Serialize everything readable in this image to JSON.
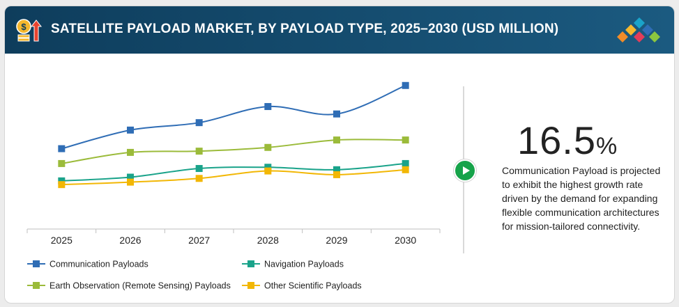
{
  "header": {
    "title": "SATELLITE PAYLOAD MARKET, BY PAYLOAD TYPE, 2025–2030 (USD MILLION)"
  },
  "colors": {
    "header_bg": "#0e3d5c",
    "communication": "#2f6db5",
    "navigation": "#1aa38a",
    "earth_observation": "#9bbb3a",
    "other_scientific": "#f2b705",
    "accent_green": "#16a34a"
  },
  "chart_data": {
    "type": "line",
    "title": "SATELLITE PAYLOAD MARKET, BY PAYLOAD TYPE, 2025–2030 (USD MILLION)",
    "xlabel": "",
    "ylabel": "",
    "grid": false,
    "legend_position": "bottom-left",
    "categories": [
      "2025",
      "2026",
      "2027",
      "2028",
      "2029",
      "2030"
    ],
    "ylim": [
      0,
      100
    ],
    "series": [
      {
        "name": "Communication Payloads",
        "color": "#2f6db5",
        "values": [
          48,
          63,
          69,
          82,
          76,
          99
        ]
      },
      {
        "name": "Navigation Payloads",
        "color": "#1aa38a",
        "values": [
          22,
          25,
          32,
          33,
          31,
          36
        ]
      },
      {
        "name": "Earth Observation (Remote Sensing) Payloads",
        "color": "#9bbb3a",
        "values": [
          36,
          45,
          46,
          49,
          55,
          55
        ]
      },
      {
        "name": "Other Scientific Payloads",
        "color": "#f2b705",
        "values": [
          19,
          21,
          24,
          30,
          27,
          31
        ]
      }
    ]
  },
  "stat": {
    "value": "16.5",
    "unit": "%",
    "description": "Communication Payload is projected to exhibit the highest growth rate driven by the demand for expanding flexible communication architectures for mission-tailored connectivity."
  },
  "icons": {
    "header": "money-growth-icon",
    "logo": "diamond-logo-icon",
    "play": "play-icon"
  }
}
